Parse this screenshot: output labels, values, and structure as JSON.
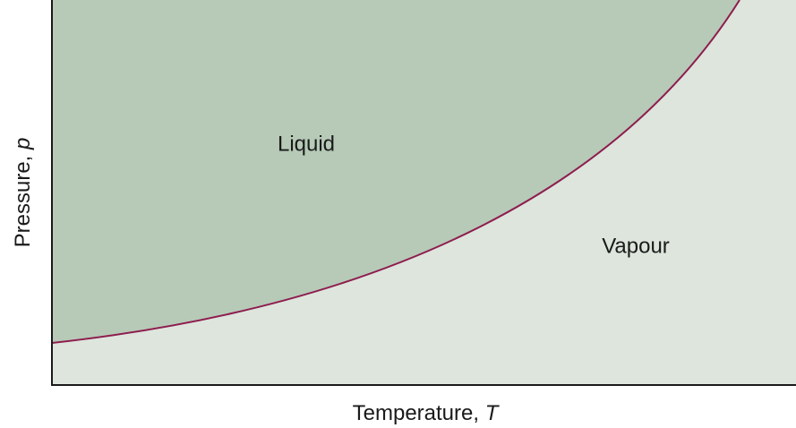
{
  "regions": {
    "liquid": "Liquid",
    "vapour": "Vapour"
  },
  "y_axis": {
    "label": "Pressure,",
    "symbol": "p"
  },
  "x_axis": {
    "label": "Temperature,",
    "symbol": "T"
  }
}
